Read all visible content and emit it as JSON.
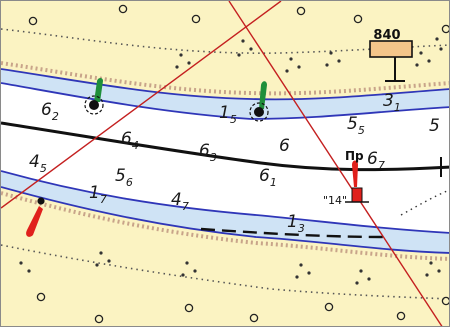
{
  "map": {
    "colors": {
      "bank": "#fbf3c2",
      "shallow_water": "#cfe3f5",
      "channel": "#ffffff",
      "isobath": "#2f36b8",
      "fairway_line": "#111111",
      "range_line": "#c42020",
      "buoy_green": "#1f8f3a",
      "buoy_red": "#e0201c",
      "sign_board": "#f4c58a",
      "dots": "#555555",
      "bank_hatch": "#c8a48a"
    },
    "kilometer_sign": {
      "text": "840",
      "icon": "km-post-icon"
    },
    "buoy_label": "Пр",
    "buoy_id": "\"14\"",
    "depth_labels": [
      {
        "main": "6",
        "sub": "2"
      },
      {
        "main": "1",
        "sub": "5"
      },
      {
        "main": "3",
        "sub": "1"
      },
      {
        "main": "6",
        "sub": "4"
      },
      {
        "main": "6",
        "sub": "3"
      },
      {
        "main": "6",
        "sub": ""
      },
      {
        "main": "5",
        "sub": "5"
      },
      {
        "main": "5",
        "sub": ""
      },
      {
        "main": "4",
        "sub": "5"
      },
      {
        "main": "5",
        "sub": "6"
      },
      {
        "main": "6",
        "sub": "1"
      },
      {
        "main": "6",
        "sub": "7"
      },
      {
        "main": "1",
        "sub": "7"
      },
      {
        "main": "4",
        "sub": "7"
      },
      {
        "main": "1",
        "sub": "3"
      }
    ],
    "icons": [
      "green-buoy-icon",
      "red-buoy-icon",
      "km-post-icon",
      "landmark-circle-icon",
      "range-line-icon"
    ]
  }
}
